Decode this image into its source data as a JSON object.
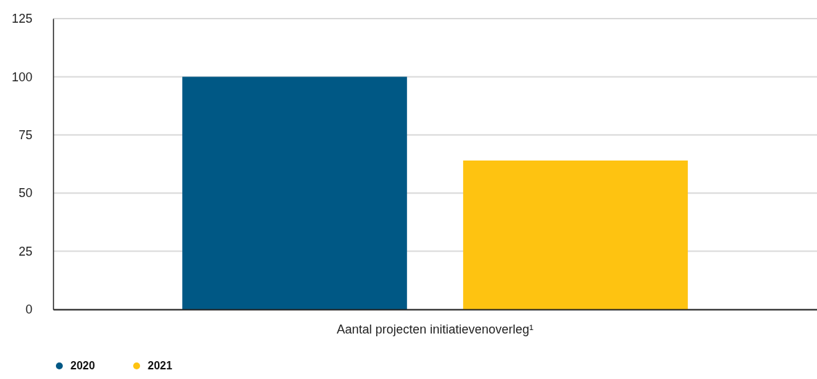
{
  "chart_data": {
    "type": "bar",
    "categories": [
      "Aantal projecten initiatievenoverleg¹"
    ],
    "series": [
      {
        "name": "2020",
        "color": "#005885",
        "values": [
          100
        ]
      },
      {
        "name": "2021",
        "color": "#fec311",
        "values": [
          64
        ]
      }
    ],
    "ylim": [
      0,
      125
    ],
    "yticks": [
      0,
      25,
      50,
      75,
      100,
      125
    ],
    "grid": "y",
    "legend": "bottom left"
  }
}
